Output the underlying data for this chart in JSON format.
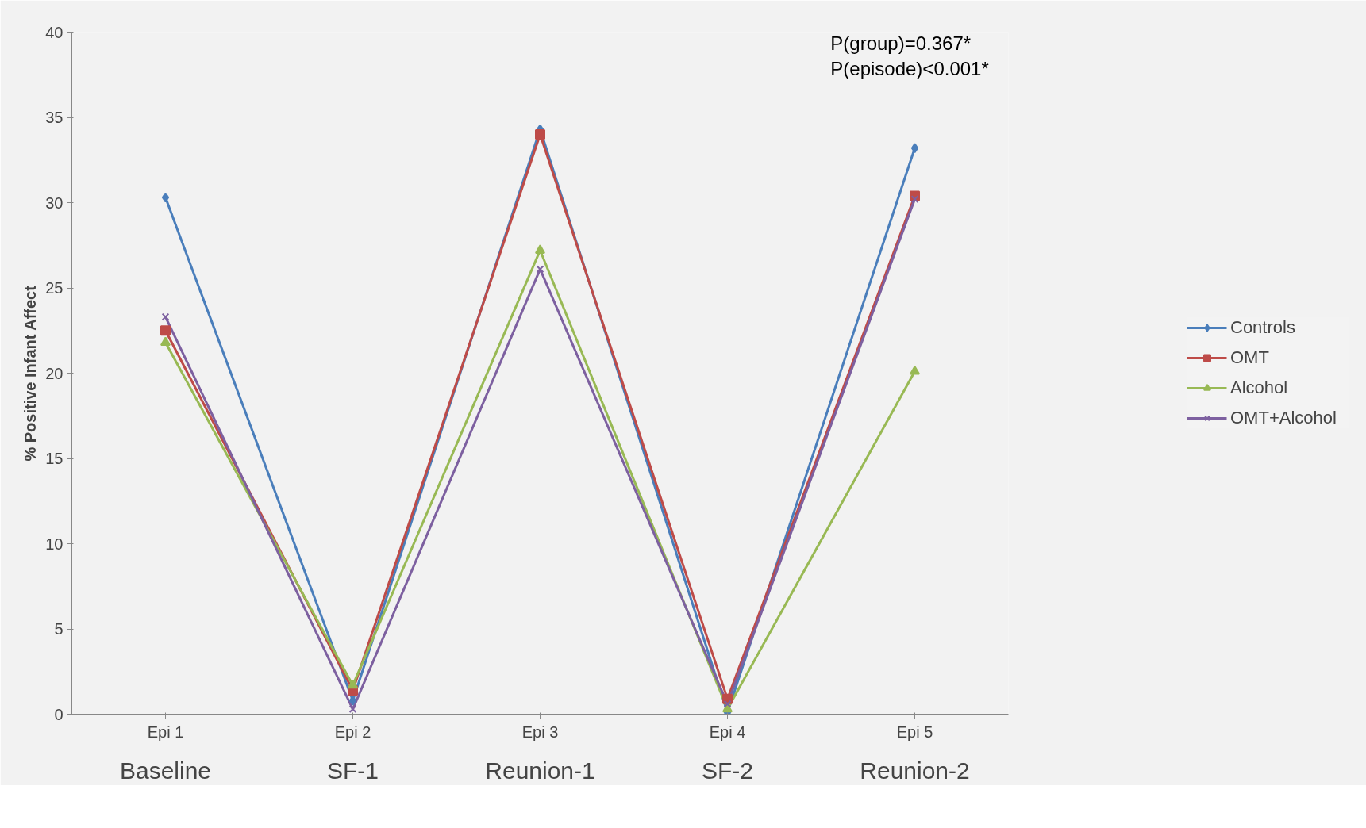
{
  "chart_data": {
    "type": "line",
    "ylabel": "% Positive Infant Affect",
    "categories": [
      "Epi 1",
      "Epi 2",
      "Epi 3",
      "Epi 4",
      "Epi 5"
    ],
    "series": [
      {
        "name": "Controls",
        "color": "#4a7ebb",
        "marker": "diamond",
        "values": [
          30.3,
          0.8,
          34.3,
          0.1,
          33.2
        ]
      },
      {
        "name": "OMT",
        "color": "#be4b48",
        "marker": "square",
        "values": [
          22.5,
          1.4,
          34.0,
          0.9,
          30.4
        ]
      },
      {
        "name": "Alcohol",
        "color": "#98b954",
        "marker": "triangle",
        "values": [
          21.8,
          1.7,
          27.2,
          0.3,
          20.1
        ]
      },
      {
        "name": "OMT+Alcohol",
        "color": "#7d60a0",
        "marker": "x",
        "values": [
          23.3,
          0.3,
          26.1,
          0.6,
          30.2
        ]
      }
    ],
    "ylim": [
      0,
      40
    ],
    "yticks": [
      0,
      5,
      10,
      15,
      20,
      25,
      30,
      35,
      40
    ],
    "grid": false,
    "legend": "right",
    "annotations": [
      "P(group)=0.367*",
      "P(episode)<0.001*",
      "Baseline",
      "SF-1",
      "Reunion-1",
      "SF-2",
      "Reunion-2"
    ]
  }
}
